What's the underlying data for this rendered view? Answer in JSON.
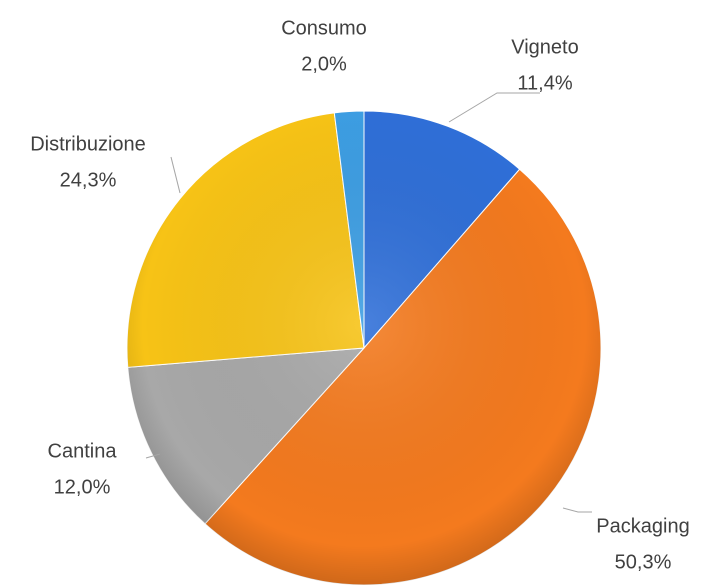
{
  "chart_data": {
    "type": "pie",
    "categories": [
      "Vigneto",
      "Packaging",
      "Cantina",
      "Distribuzione",
      "Consumo"
    ],
    "values": [
      11.4,
      50.3,
      12.0,
      24.3,
      2.0
    ],
    "value_labels": [
      "11,4%",
      "50,3%",
      "12,0%",
      "24,3%",
      "2,0%"
    ],
    "colors": [
      "#2f6fd8",
      "#f47a1e",
      "#a8a8a8",
      "#f7c316",
      "#3d9ee3"
    ]
  }
}
